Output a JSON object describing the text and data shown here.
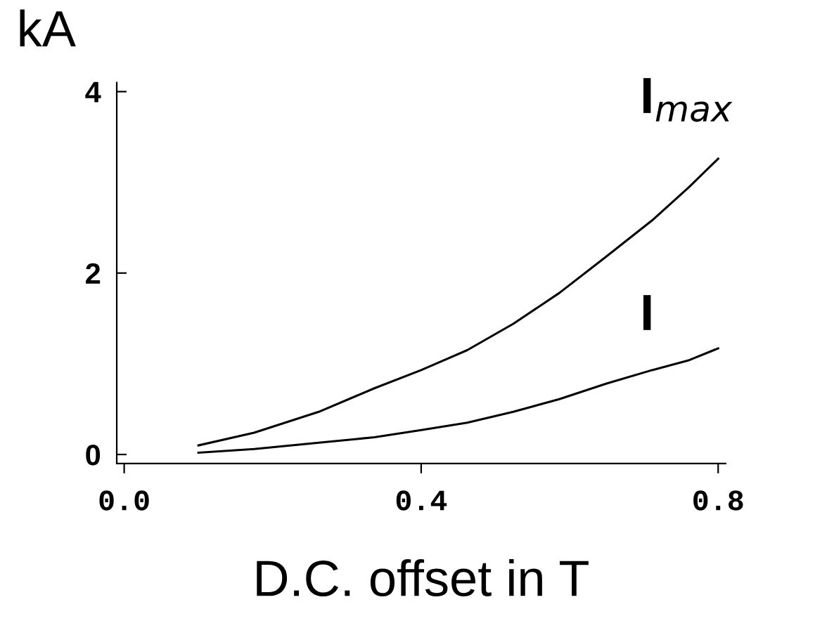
{
  "chart_data": {
    "type": "line",
    "ylabel": "kA",
    "xlabel": "D.C. offset in T",
    "xlim": [
      -0.01,
      0.81
    ],
    "ylim": [
      -0.1,
      4.1
    ],
    "xticks": [
      {
        "value": 0,
        "label": "0.0"
      },
      0.4,
      0.8
    ],
    "yticks": [
      0,
      2,
      4
    ],
    "grid": false,
    "legend": false,
    "marker": "none",
    "line_style": "solid",
    "series": [
      {
        "name": "I$_{max}$",
        "color": "#000000",
        "x": [
          0.1,
          0.175,
          0.262,
          0.337,
          0.4,
          0.462,
          0.524,
          0.586,
          0.649,
          0.711,
          0.761,
          0.8
        ],
        "values": [
          0.1,
          0.24,
          0.47,
          0.73,
          0.93,
          1.15,
          1.44,
          1.78,
          2.18,
          2.58,
          2.95,
          3.26
        ]
      },
      {
        "name": "I",
        "color": "#000000",
        "x": [
          0.1,
          0.175,
          0.262,
          0.337,
          0.4,
          0.462,
          0.524,
          0.586,
          0.649,
          0.711,
          0.761,
          0.8
        ],
        "values": [
          0.02,
          0.06,
          0.13,
          0.19,
          0.27,
          0.35,
          0.47,
          0.61,
          0.78,
          0.93,
          1.04,
          1.17
        ]
      }
    ]
  }
}
